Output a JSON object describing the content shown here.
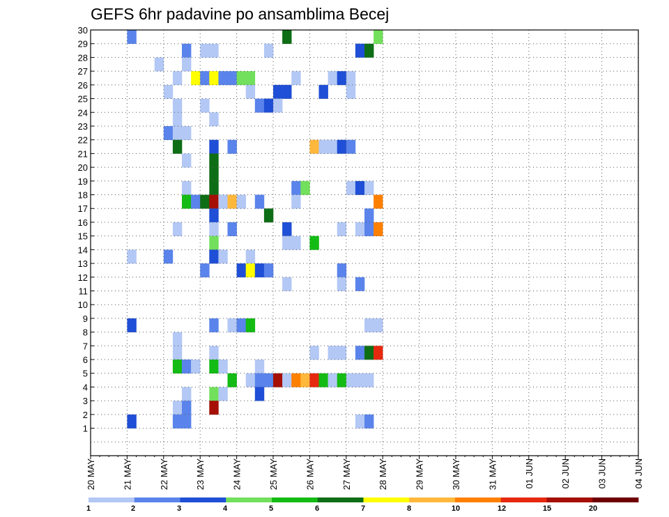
{
  "chart_data": {
    "type": "heatmap",
    "title": "GEFS 6hr padavine po ansamblima Becej",
    "xlabel": "",
    "ylabel": "",
    "x_tick_labels": [
      "20 MAY",
      "21 MAY",
      "22 MAY",
      "23 MAY",
      "24 MAY",
      "25 MAY",
      "26 MAY",
      "27 MAY",
      "28 MAY",
      "29 MAY",
      "30 MAY",
      "31 MAY",
      "01 JUN",
      "02 JUN",
      "03 JUN",
      "04 JUN"
    ],
    "y_tick_labels": [
      "1",
      "2",
      "3",
      "4",
      "5",
      "6",
      "7",
      "8",
      "9",
      "10",
      "11",
      "12",
      "13",
      "14",
      "15",
      "16",
      "17",
      "18",
      "19",
      "20",
      "21",
      "22",
      "23",
      "24",
      "25",
      "26",
      "27",
      "28",
      "29",
      "30"
    ],
    "grid": true,
    "legend": {
      "placement": "bottom",
      "colors": [
        "#b3c8f5",
        "#5a84eb",
        "#1f4fd6",
        "#72e05c",
        "#14bb14",
        "#0e6e16",
        "#ffff00",
        "#ffb83c",
        "#ff8000",
        "#e6280f",
        "#a50f05",
        "#6e0000"
      ],
      "labels": [
        "1",
        "2",
        "3",
        "4",
        "5",
        "6",
        "7",
        "8",
        "10",
        "12",
        "15",
        "20"
      ]
    },
    "cells": [
      {
        "member": 30,
        "step": 4,
        "level": 2
      },
      {
        "member": 30,
        "step": 21,
        "level": 6
      },
      {
        "member": 30,
        "step": 31,
        "level": 4
      },
      {
        "member": 29,
        "step": 10,
        "level": 2
      },
      {
        "member": 29,
        "step": 12,
        "level": 1
      },
      {
        "member": 29,
        "step": 13,
        "level": 1
      },
      {
        "member": 29,
        "step": 19,
        "level": 1
      },
      {
        "member": 29,
        "step": 29,
        "level": 3
      },
      {
        "member": 29,
        "step": 30,
        "level": 6
      },
      {
        "member": 28,
        "step": 7,
        "level": 1
      },
      {
        "member": 28,
        "step": 10,
        "level": 1
      },
      {
        "member": 27,
        "step": 9,
        "level": 1
      },
      {
        "member": 27,
        "step": 11,
        "level": 7
      },
      {
        "member": 27,
        "step": 12,
        "level": 2
      },
      {
        "member": 27,
        "step": 13,
        "level": 7
      },
      {
        "member": 27,
        "step": 14,
        "level": 2
      },
      {
        "member": 27,
        "step": 15,
        "level": 2
      },
      {
        "member": 27,
        "step": 16,
        "level": 4
      },
      {
        "member": 27,
        "step": 17,
        "level": 4
      },
      {
        "member": 27,
        "step": 22,
        "level": 1
      },
      {
        "member": 27,
        "step": 26,
        "level": 1
      },
      {
        "member": 27,
        "step": 27,
        "level": 3
      },
      {
        "member": 27,
        "step": 28,
        "level": 1
      },
      {
        "member": 26,
        "step": 8,
        "level": 1
      },
      {
        "member": 26,
        "step": 17,
        "level": 1
      },
      {
        "member": 26,
        "step": 20,
        "level": 3
      },
      {
        "member": 26,
        "step": 21,
        "level": 3
      },
      {
        "member": 26,
        "step": 25,
        "level": 3
      },
      {
        "member": 26,
        "step": 28,
        "level": 1
      },
      {
        "member": 25,
        "step": 9,
        "level": 1
      },
      {
        "member": 25,
        "step": 12,
        "level": 1
      },
      {
        "member": 25,
        "step": 18,
        "level": 2
      },
      {
        "member": 25,
        "step": 19,
        "level": 3
      },
      {
        "member": 25,
        "step": 20,
        "level": 1
      },
      {
        "member": 24,
        "step": 9,
        "level": 1
      },
      {
        "member": 24,
        "step": 13,
        "level": 1
      },
      {
        "member": 23,
        "step": 8,
        "level": 2
      },
      {
        "member": 23,
        "step": 9,
        "level": 1
      },
      {
        "member": 23,
        "step": 10,
        "level": 1
      },
      {
        "member": 22,
        "step": 9,
        "level": 6
      },
      {
        "member": 22,
        "step": 13,
        "level": 3
      },
      {
        "member": 22,
        "step": 15,
        "level": 2
      },
      {
        "member": 22,
        "step": 24,
        "level": 8
      },
      {
        "member": 22,
        "step": 25,
        "level": 1
      },
      {
        "member": 22,
        "step": 26,
        "level": 1
      },
      {
        "member": 22,
        "step": 27,
        "level": 3
      },
      {
        "member": 22,
        "step": 28,
        "level": 2
      },
      {
        "member": 21,
        "step": 10,
        "level": 1
      },
      {
        "member": 21,
        "step": 13,
        "level": 6
      },
      {
        "member": 20,
        "step": 13,
        "level": 6
      },
      {
        "member": 19,
        "step": 10,
        "level": 1
      },
      {
        "member": 19,
        "step": 13,
        "level": 6
      },
      {
        "member": 19,
        "step": 22,
        "level": 2
      },
      {
        "member": 19,
        "step": 23,
        "level": 4
      },
      {
        "member": 19,
        "step": 28,
        "level": 1
      },
      {
        "member": 19,
        "step": 29,
        "level": 3
      },
      {
        "member": 19,
        "step": 30,
        "level": 1
      },
      {
        "member": 18,
        "step": 10,
        "level": 5
      },
      {
        "member": 18,
        "step": 11,
        "level": 2
      },
      {
        "member": 18,
        "step": 12,
        "level": 6
      },
      {
        "member": 18,
        "step": 13,
        "level": 11
      },
      {
        "member": 18,
        "step": 14,
        "level": 1
      },
      {
        "member": 18,
        "step": 15,
        "level": 8
      },
      {
        "member": 18,
        "step": 16,
        "level": 1
      },
      {
        "member": 18,
        "step": 18,
        "level": 2
      },
      {
        "member": 18,
        "step": 22,
        "level": 1
      },
      {
        "member": 18,
        "step": 31,
        "level": 9
      },
      {
        "member": 17,
        "step": 13,
        "level": 3
      },
      {
        "member": 17,
        "step": 19,
        "level": 6
      },
      {
        "member": 17,
        "step": 30,
        "level": 2
      },
      {
        "member": 16,
        "step": 9,
        "level": 1
      },
      {
        "member": 16,
        "step": 13,
        "level": 1
      },
      {
        "member": 16,
        "step": 15,
        "level": 2
      },
      {
        "member": 16,
        "step": 21,
        "level": 3
      },
      {
        "member": 16,
        "step": 27,
        "level": 1
      },
      {
        "member": 16,
        "step": 29,
        "level": 1
      },
      {
        "member": 16,
        "step": 30,
        "level": 2
      },
      {
        "member": 16,
        "step": 31,
        "level": 9
      },
      {
        "member": 15,
        "step": 13,
        "level": 4
      },
      {
        "member": 15,
        "step": 21,
        "level": 1
      },
      {
        "member": 15,
        "step": 22,
        "level": 1
      },
      {
        "member": 15,
        "step": 24,
        "level": 5
      },
      {
        "member": 14,
        "step": 4,
        "level": 1
      },
      {
        "member": 14,
        "step": 8,
        "level": 2
      },
      {
        "member": 14,
        "step": 13,
        "level": 3
      },
      {
        "member": 14,
        "step": 14,
        "level": 1
      },
      {
        "member": 14,
        "step": 17,
        "level": 1
      },
      {
        "member": 13,
        "step": 12,
        "level": 2
      },
      {
        "member": 13,
        "step": 16,
        "level": 3
      },
      {
        "member": 13,
        "step": 17,
        "level": 7
      },
      {
        "member": 13,
        "step": 18,
        "level": 3
      },
      {
        "member": 13,
        "step": 19,
        "level": 2
      },
      {
        "member": 13,
        "step": 27,
        "level": 2
      },
      {
        "member": 12,
        "step": 21,
        "level": 1
      },
      {
        "member": 12,
        "step": 27,
        "level": 1
      },
      {
        "member": 12,
        "step": 29,
        "level": 2
      },
      {
        "member": 9,
        "step": 4,
        "level": 3
      },
      {
        "member": 9,
        "step": 13,
        "level": 2
      },
      {
        "member": 9,
        "step": 15,
        "level": 1
      },
      {
        "member": 9,
        "step": 16,
        "level": 2
      },
      {
        "member": 9,
        "step": 17,
        "level": 5
      },
      {
        "member": 9,
        "step": 30,
        "level": 1
      },
      {
        "member": 9,
        "step": 31,
        "level": 1
      },
      {
        "member": 8,
        "step": 9,
        "level": 1
      },
      {
        "member": 7,
        "step": 9,
        "level": 1
      },
      {
        "member": 7,
        "step": 13,
        "level": 1
      },
      {
        "member": 7,
        "step": 24,
        "level": 1
      },
      {
        "member": 7,
        "step": 26,
        "level": 1
      },
      {
        "member": 7,
        "step": 27,
        "level": 1
      },
      {
        "member": 7,
        "step": 29,
        "level": 2
      },
      {
        "member": 7,
        "step": 30,
        "level": 6
      },
      {
        "member": 7,
        "step": 31,
        "level": 10
      },
      {
        "member": 6,
        "step": 9,
        "level": 5
      },
      {
        "member": 6,
        "step": 10,
        "level": 2
      },
      {
        "member": 6,
        "step": 11,
        "level": 1
      },
      {
        "member": 6,
        "step": 13,
        "level": 5
      },
      {
        "member": 6,
        "step": 14,
        "level": 1
      },
      {
        "member": 6,
        "step": 18,
        "level": 1
      },
      {
        "member": 5,
        "step": 15,
        "level": 5
      },
      {
        "member": 5,
        "step": 17,
        "level": 1
      },
      {
        "member": 5,
        "step": 18,
        "level": 2
      },
      {
        "member": 5,
        "step": 19,
        "level": 2
      },
      {
        "member": 5,
        "step": 20,
        "level": 11
      },
      {
        "member": 5,
        "step": 21,
        "level": 1
      },
      {
        "member": 5,
        "step": 22,
        "level": 9
      },
      {
        "member": 5,
        "step": 23,
        "level": 8
      },
      {
        "member": 5,
        "step": 24,
        "level": 10
      },
      {
        "member": 5,
        "step": 25,
        "level": 5
      },
      {
        "member": 5,
        "step": 26,
        "level": 1
      },
      {
        "member": 5,
        "step": 27,
        "level": 5
      },
      {
        "member": 5,
        "step": 28,
        "level": 1
      },
      {
        "member": 5,
        "step": 29,
        "level": 1
      },
      {
        "member": 5,
        "step": 30,
        "level": 1
      },
      {
        "member": 4,
        "step": 10,
        "level": 1
      },
      {
        "member": 4,
        "step": 13,
        "level": 4
      },
      {
        "member": 4,
        "step": 14,
        "level": 1
      },
      {
        "member": 4,
        "step": 18,
        "level": 3
      },
      {
        "member": 3,
        "step": 9,
        "level": 1
      },
      {
        "member": 3,
        "step": 10,
        "level": 2
      },
      {
        "member": 3,
        "step": 13,
        "level": 11
      },
      {
        "member": 2,
        "step": 4,
        "level": 3
      },
      {
        "member": 2,
        "step": 9,
        "level": 2
      },
      {
        "member": 2,
        "step": 10,
        "level": 2
      },
      {
        "member": 2,
        "step": 29,
        "level": 1
      },
      {
        "member": 2,
        "step": 30,
        "level": 2
      }
    ]
  }
}
